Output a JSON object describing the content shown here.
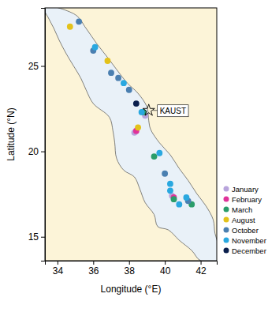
{
  "chart_data": {
    "type": "scatter",
    "x_label": "Longitude (°E)",
    "y_label": "Latitude (°N)",
    "xlim": [
      33.3,
      42.9
    ],
    "ylim": [
      13.6,
      28.4
    ],
    "xticks": [
      34,
      36,
      38,
      40,
      42
    ],
    "yticks": [
      15,
      20,
      25
    ],
    "legend": "right",
    "marker": "circle",
    "sea_outline": {
      "x": [
        35.0,
        35.6,
        36.2,
        36.8,
        37.3,
        37.9,
        38.5,
        39.0,
        39.1,
        39.2,
        39.7,
        40.3,
        40.8,
        41.3,
        41.8,
        42.3,
        42.7,
        42.8,
        43.0,
        43.2,
        42.0,
        41.5,
        40.8,
        40.2,
        39.6,
        39.4,
        38.9,
        38.6,
        38.3,
        37.7,
        37.3,
        37.2,
        37.1,
        36.9,
        36.0,
        35.6,
        35.3,
        34.9,
        34.5,
        34.1,
        33.8,
        33.5,
        33.2
      ],
      "y": [
        28.0,
        27.2,
        26.3,
        25.5,
        24.8,
        24.0,
        23.4,
        22.6,
        21.8,
        21.3,
        20.5,
        19.8,
        19.0,
        18.3,
        17.5,
        16.8,
        16.0,
        15.2,
        14.5,
        13.6,
        13.6,
        14.2,
        14.8,
        15.4,
        15.6,
        16.3,
        17.0,
        17.8,
        18.5,
        18.9,
        19.6,
        20.5,
        21.2,
        22.0,
        22.8,
        23.6,
        24.3,
        25.0,
        25.7,
        26.5,
        27.2,
        27.8,
        28.5
      ]
    },
    "series": [
      {
        "name": "January",
        "color": "#b8a4dc",
        "x": [
          38.9,
          38.3,
          40.4
        ],
        "y": [
          22.1,
          21.1,
          17.4
        ]
      },
      {
        "name": "February",
        "color": "#e0339a",
        "x": [
          38.4,
          40.5
        ],
        "y": [
          21.2,
          17.3
        ]
      },
      {
        "name": "March",
        "color": "#2a9d6a",
        "x": [
          38.8,
          39.4,
          40.5,
          41.5
        ],
        "y": [
          22.3,
          19.7,
          17.2,
          16.9
        ]
      },
      {
        "name": "August",
        "color": "#e3c21a",
        "x": [
          34.7,
          36.8,
          38.5
        ],
        "y": [
          27.3,
          25.3,
          21.4
        ]
      },
      {
        "name": "October",
        "color": "#4a7fb0",
        "x": [
          35.2,
          36.0,
          37.0,
          37.4,
          38.0,
          40.0,
          41.3
        ],
        "y": [
          27.6,
          25.9,
          24.6,
          24.3,
          23.6,
          18.7,
          17.1
        ]
      },
      {
        "name": "November",
        "color": "#29a8e0",
        "x": [
          36.1,
          37.7,
          38.7,
          39.7,
          40.3,
          40.3,
          41.2,
          40.8
        ],
        "y": [
          26.1,
          24.0,
          22.3,
          19.9,
          18.1,
          17.7,
          17.3,
          16.9
        ]
      },
      {
        "name": "December",
        "color": "#0b1f4d",
        "x": [
          38.4
        ],
        "y": [
          22.8
        ]
      }
    ],
    "annotations": [
      {
        "text": "KAUST",
        "x": 39.1,
        "y": 22.4,
        "marker": "star"
      }
    ]
  }
}
